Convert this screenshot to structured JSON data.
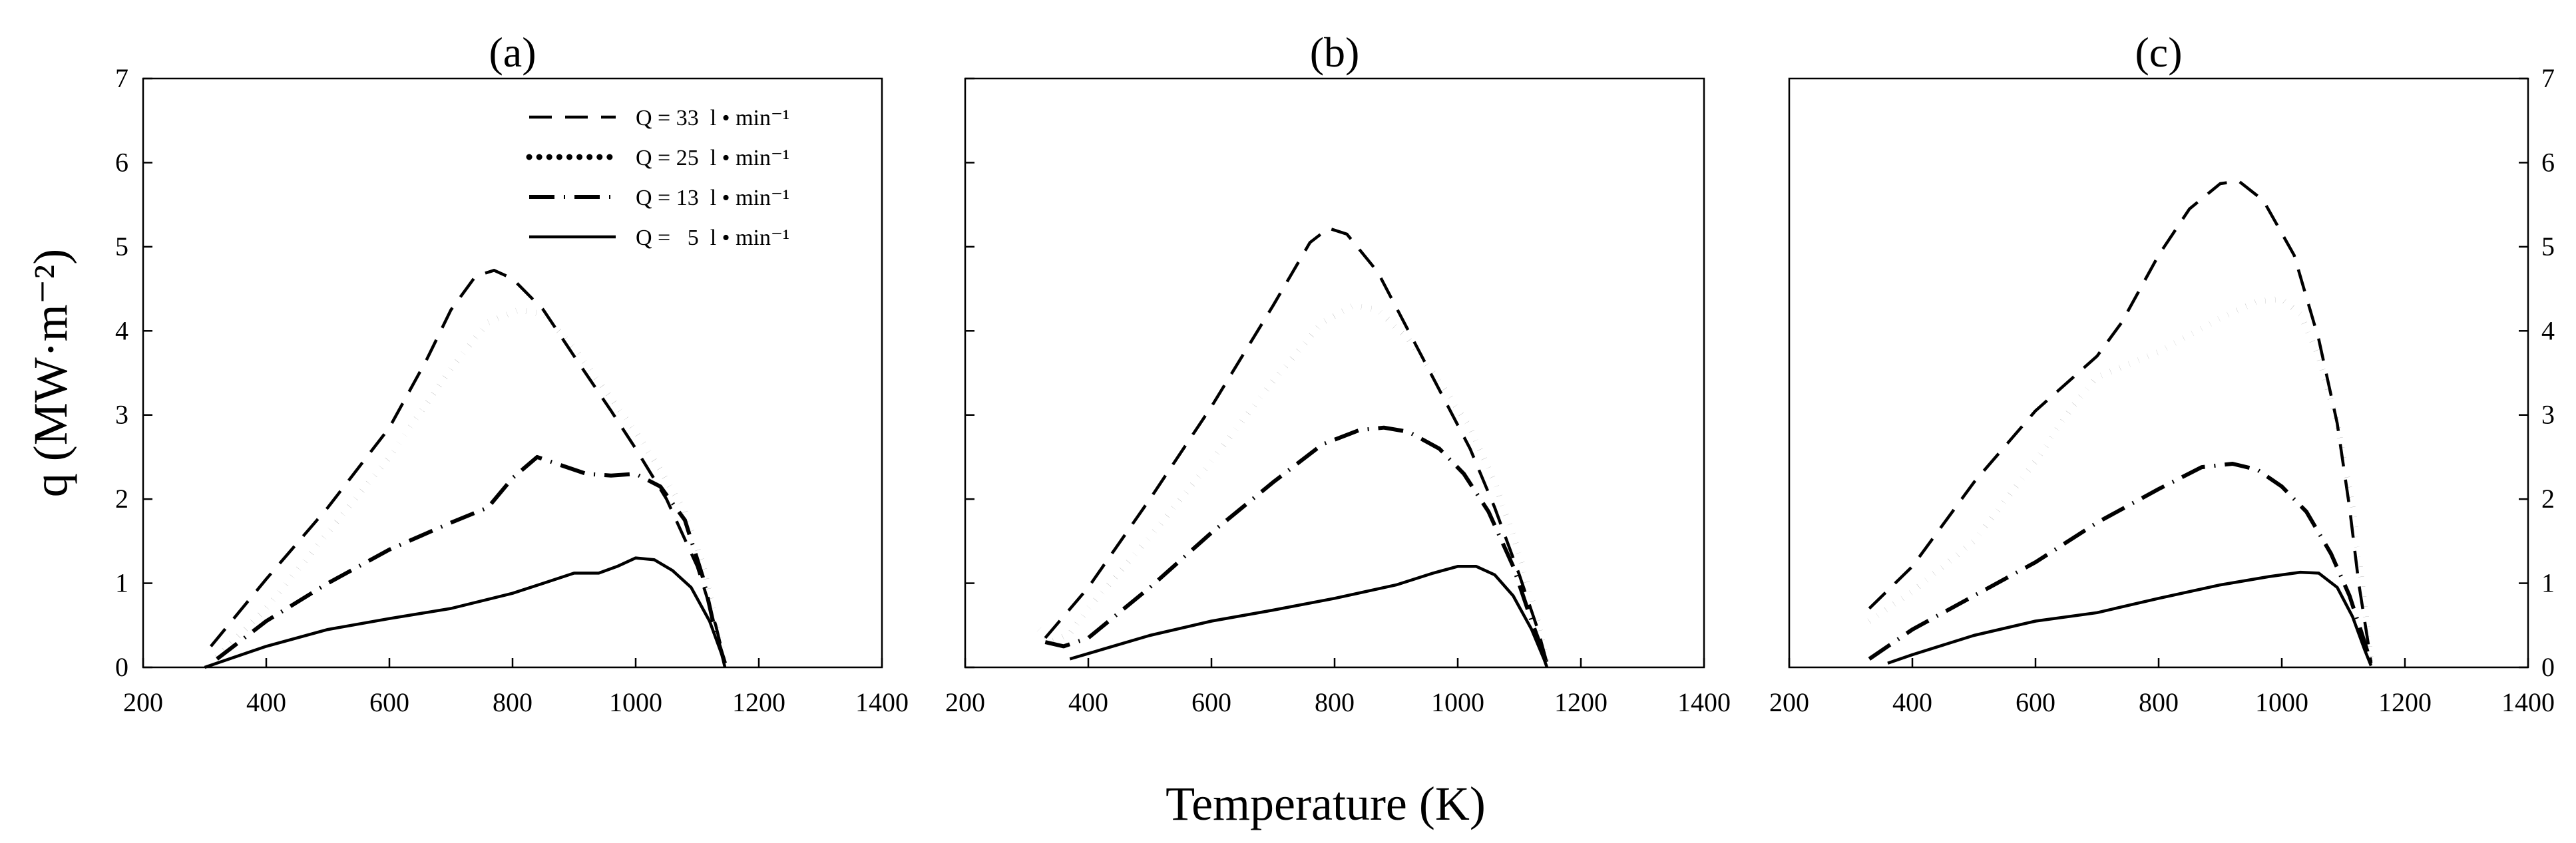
{
  "chart_data": {
    "type": "line",
    "xlabel": "Temperature (K)",
    "ylabel": "q (MW·m⁻²)",
    "legend": {
      "placement": "top-right of panel (a)",
      "entries": [
        {
          "name": "Q = 33  l • min⁻¹",
          "style": "dash"
        },
        {
          "name": "Q = 25  l • min⁻¹",
          "style": "dot"
        },
        {
          "name": "Q = 13  l • min⁻¹",
          "style": "dashdot"
        },
        {
          "name": "Q =   5  l • min⁻¹",
          "style": "solid"
        }
      ]
    },
    "panels": [
      {
        "title": "(a)",
        "xlim": [
          200,
          1400
        ],
        "ylim": [
          0,
          7
        ],
        "xticks": [
          200,
          400,
          600,
          800,
          1000,
          1200,
          1400
        ],
        "yticks": [
          0,
          1,
          2,
          3,
          4,
          5,
          6,
          7
        ],
        "yaxis_side": "left",
        "series": [
          {
            "name": "Q = 33 l•min-1",
            "style": "dash",
            "points": [
              [
                310,
                0.25
              ],
              [
                400,
                1.05
              ],
              [
                500,
                1.9
              ],
              [
                600,
                2.85
              ],
              [
                660,
                3.65
              ],
              [
                700,
                4.25
              ],
              [
                740,
                4.65
              ],
              [
                770,
                4.72
              ],
              [
                800,
                4.62
              ],
              [
                850,
                4.25
              ],
              [
                900,
                3.7
              ],
              [
                960,
                3.05
              ],
              [
                1000,
                2.6
              ],
              [
                1050,
                2.0
              ],
              [
                1100,
                1.2
              ],
              [
                1130,
                0.5
              ],
              [
                1145,
                0.05
              ]
            ]
          },
          {
            "name": "Q = 25 l•min-1",
            "style": "dot",
            "points": [
              [
                320,
                0.12
              ],
              [
                400,
                0.7
              ],
              [
                500,
                1.6
              ],
              [
                600,
                2.5
              ],
              [
                700,
                3.55
              ],
              [
                760,
                4.1
              ],
              [
                810,
                4.25
              ],
              [
                850,
                4.2
              ],
              [
                900,
                3.8
              ],
              [
                950,
                3.3
              ],
              [
                1000,
                2.8
              ],
              [
                1040,
                2.35
              ],
              [
                1080,
                1.85
              ],
              [
                1110,
                1.2
              ],
              [
                1130,
                0.55
              ],
              [
                1145,
                0.05
              ]
            ]
          },
          {
            "name": "Q = 13 l•min-1",
            "style": "dashdot",
            "points": [
              [
                320,
                0.1
              ],
              [
                400,
                0.55
              ],
              [
                500,
                1.0
              ],
              [
                600,
                1.4
              ],
              [
                700,
                1.72
              ],
              [
                760,
                1.9
              ],
              [
                800,
                2.25
              ],
              [
                840,
                2.5
              ],
              [
                880,
                2.4
              ],
              [
                920,
                2.3
              ],
              [
                960,
                2.28
              ],
              [
                1000,
                2.3
              ],
              [
                1040,
                2.15
              ],
              [
                1080,
                1.75
              ],
              [
                1110,
                1.05
              ],
              [
                1130,
                0.4
              ],
              [
                1145,
                0.05
              ]
            ]
          },
          {
            "name": "Q = 5 l•min-1",
            "style": "solid",
            "points": [
              [
                300,
                0.0
              ],
              [
                400,
                0.25
              ],
              [
                500,
                0.45
              ],
              [
                600,
                0.58
              ],
              [
                700,
                0.7
              ],
              [
                800,
                0.88
              ],
              [
                850,
                1.0
              ],
              [
                900,
                1.12
              ],
              [
                940,
                1.12
              ],
              [
                970,
                1.2
              ],
              [
                1000,
                1.3
              ],
              [
                1030,
                1.28
              ],
              [
                1060,
                1.15
              ],
              [
                1090,
                0.95
              ],
              [
                1120,
                0.55
              ],
              [
                1140,
                0.15
              ],
              [
                1145,
                0.0
              ]
            ]
          }
        ]
      },
      {
        "title": "(b)",
        "xlim": [
          200,
          1400
        ],
        "ylim": [
          0,
          7
        ],
        "xticks": [
          200,
          400,
          600,
          800,
          1000,
          1200,
          1400
        ],
        "yticks": [
          0,
          1,
          2,
          3,
          4,
          5,
          6,
          7
        ],
        "yaxis_side": "none",
        "series": [
          {
            "name": "Q = 33 l•min-1",
            "style": "dash",
            "points": [
              [
                330,
                0.35
              ],
              [
                400,
                0.95
              ],
              [
                500,
                2.0
              ],
              [
                600,
                3.1
              ],
              [
                700,
                4.3
              ],
              [
                760,
                5.05
              ],
              [
                790,
                5.22
              ],
              [
                820,
                5.15
              ],
              [
                870,
                4.7
              ],
              [
                920,
                4.0
              ],
              [
                970,
                3.3
              ],
              [
                1020,
                2.6
              ],
              [
                1060,
                1.9
              ],
              [
                1100,
                1.1
              ],
              [
                1130,
                0.45
              ],
              [
                1145,
                0.05
              ]
            ]
          },
          {
            "name": "Q = 25 l•min-1",
            "style": "dot",
            "points": [
              [
                320,
                0.45
              ],
              [
                340,
                0.3
              ],
              [
                370,
                0.4
              ],
              [
                400,
                0.7
              ],
              [
                500,
                1.55
              ],
              [
                600,
                2.45
              ],
              [
                700,
                3.4
              ],
              [
                780,
                4.1
              ],
              [
                830,
                4.3
              ],
              [
                870,
                4.25
              ],
              [
                920,
                3.9
              ],
              [
                970,
                3.4
              ],
              [
                1020,
                2.85
              ],
              [
                1060,
                2.2
              ],
              [
                1100,
                1.35
              ],
              [
                1130,
                0.55
              ],
              [
                1145,
                0.05
              ]
            ]
          },
          {
            "name": "Q = 13 l•min-1",
            "style": "dashdot",
            "points": [
              [
                330,
                0.3
              ],
              [
                360,
                0.25
              ],
              [
                400,
                0.35
              ],
              [
                500,
                0.95
              ],
              [
                600,
                1.6
              ],
              [
                700,
                2.2
              ],
              [
                780,
                2.65
              ],
              [
                840,
                2.82
              ],
              [
                880,
                2.85
              ],
              [
                920,
                2.8
              ],
              [
                970,
                2.6
              ],
              [
                1010,
                2.3
              ],
              [
                1050,
                1.85
              ],
              [
                1090,
                1.2
              ],
              [
                1120,
                0.55
              ],
              [
                1145,
                0.05
              ]
            ]
          },
          {
            "name": "Q = 5 l•min-1",
            "style": "solid",
            "points": [
              [
                370,
                0.1
              ],
              [
                500,
                0.38
              ],
              [
                600,
                0.55
              ],
              [
                700,
                0.68
              ],
              [
                800,
                0.82
              ],
              [
                900,
                0.98
              ],
              [
                960,
                1.12
              ],
              [
                1000,
                1.2
              ],
              [
                1030,
                1.2
              ],
              [
                1060,
                1.1
              ],
              [
                1090,
                0.85
              ],
              [
                1120,
                0.45
              ],
              [
                1140,
                0.1
              ],
              [
                1145,
                0.0
              ]
            ]
          }
        ]
      },
      {
        "title": "(c)",
        "xlim": [
          200,
          1400
        ],
        "ylim": [
          0,
          7
        ],
        "xticks": [
          200,
          400,
          600,
          800,
          1000,
          1200,
          1400
        ],
        "yticks": [
          0,
          1,
          2,
          3,
          4,
          5,
          6,
          7
        ],
        "yaxis_side": "right",
        "series": [
          {
            "name": "Q = 33 l•min-1",
            "style": "dash",
            "points": [
              [
                330,
                0.7
              ],
              [
                400,
                1.2
              ],
              [
                500,
                2.2
              ],
              [
                600,
                3.05
              ],
              [
                700,
                3.7
              ],
              [
                740,
                4.1
              ],
              [
                800,
                4.9
              ],
              [
                850,
                5.45
              ],
              [
                900,
                5.75
              ],
              [
                930,
                5.78
              ],
              [
                970,
                5.55
              ],
              [
                1020,
                4.9
              ],
              [
                1060,
                3.9
              ],
              [
                1090,
                2.9
              ],
              [
                1110,
                1.9
              ],
              [
                1125,
                1.0
              ],
              [
                1140,
                0.3
              ],
              [
                1145,
                0.05
              ]
            ]
          },
          {
            "name": "Q = 25 l•min-1",
            "style": "dot",
            "points": [
              [
                330,
                0.55
              ],
              [
                400,
                0.9
              ],
              [
                500,
                1.5
              ],
              [
                600,
                2.45
              ],
              [
                660,
                3.1
              ],
              [
                700,
                3.45
              ],
              [
                750,
                3.6
              ],
              [
                800,
                3.75
              ],
              [
                850,
                3.95
              ],
              [
                900,
                4.15
              ],
              [
                960,
                4.35
              ],
              [
                1000,
                4.38
              ],
              [
                1030,
                4.2
              ],
              [
                1060,
                3.7
              ],
              [
                1090,
                2.9
              ],
              [
                1115,
                1.9
              ],
              [
                1130,
                1.0
              ],
              [
                1140,
                0.4
              ],
              [
                1145,
                0.05
              ]
            ]
          },
          {
            "name": "Q = 13 l•min-1",
            "style": "dashdot",
            "points": [
              [
                330,
                0.1
              ],
              [
                400,
                0.45
              ],
              [
                500,
                0.85
              ],
              [
                600,
                1.25
              ],
              [
                700,
                1.72
              ],
              [
                800,
                2.12
              ],
              [
                870,
                2.38
              ],
              [
                920,
                2.42
              ],
              [
                960,
                2.35
              ],
              [
                1000,
                2.15
              ],
              [
                1040,
                1.85
              ],
              [
                1080,
                1.35
              ],
              [
                1110,
                0.85
              ],
              [
                1130,
                0.4
              ],
              [
                1145,
                0.05
              ]
            ]
          },
          {
            "name": "Q = 5 l•min-1",
            "style": "solid",
            "points": [
              [
                360,
                0.05
              ],
              [
                400,
                0.15
              ],
              [
                500,
                0.38
              ],
              [
                600,
                0.55
              ],
              [
                700,
                0.65
              ],
              [
                800,
                0.82
              ],
              [
                900,
                0.98
              ],
              [
                980,
                1.08
              ],
              [
                1030,
                1.13
              ],
              [
                1060,
                1.12
              ],
              [
                1090,
                0.95
              ],
              [
                1115,
                0.6
              ],
              [
                1135,
                0.2
              ],
              [
                1145,
                0.02
              ]
            ]
          }
        ]
      }
    ]
  }
}
